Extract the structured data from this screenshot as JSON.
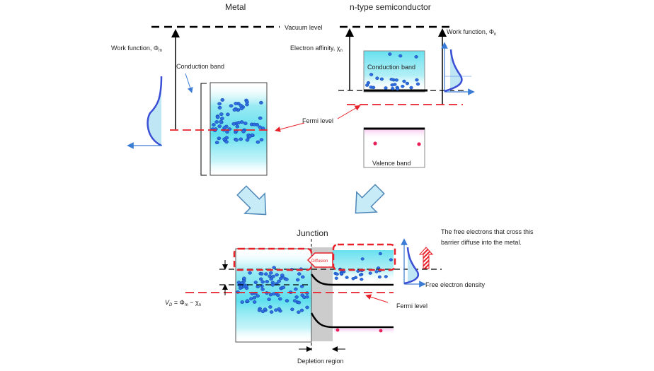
{
  "titles": {
    "metal": "Metal",
    "semiconductor": "n-type semiconductor",
    "junction": "Junction"
  },
  "labels": {
    "vacuum_level": "Vacuum level",
    "work_function_metal": "Work function, Φ",
    "work_function_metal_sub": "m",
    "conduction_band_metal": "Conduction band",
    "fermi_level_top": "Fermi level",
    "electron_affinity": "Electron affinity, χ",
    "electron_affinity_sub": "n",
    "work_function_semi": "Work function, Φ",
    "work_function_semi_sub": "n",
    "conduction_band_semi": "Conduction band",
    "valence_band": "Valence band",
    "diffusion": "Diffusion",
    "free_electron_note_line1": "The free electrons that cross this",
    "free_electron_note_line2": "barrier diffuse into the metal.",
    "free_electron_density": "Free electron density",
    "fermi_level_bottom": "Fermi level",
    "depletion_region": "Depletion region",
    "vd_eq_main": "V",
    "vd_eq_sub": "D",
    "vd_eq_mid": " = Φ",
    "vd_eq_sub2": "m",
    "vd_eq_end": " − χ",
    "vd_eq_sub3": "n"
  },
  "colors": {
    "fermi": "#e8202a",
    "electron": "#2f6ee0",
    "electron_edge": "#0b3fa5",
    "band_fill": "#5fdfee",
    "arrow_fill": "#c7ecf7",
    "arrow_stroke": "#4f86b8",
    "hole": "#e8205a",
    "valence_fill": "#f7c8f0",
    "depletion": "#cccccc",
    "density_curve": "#3a4fd6",
    "density_fill": "#bfe6f5"
  }
}
